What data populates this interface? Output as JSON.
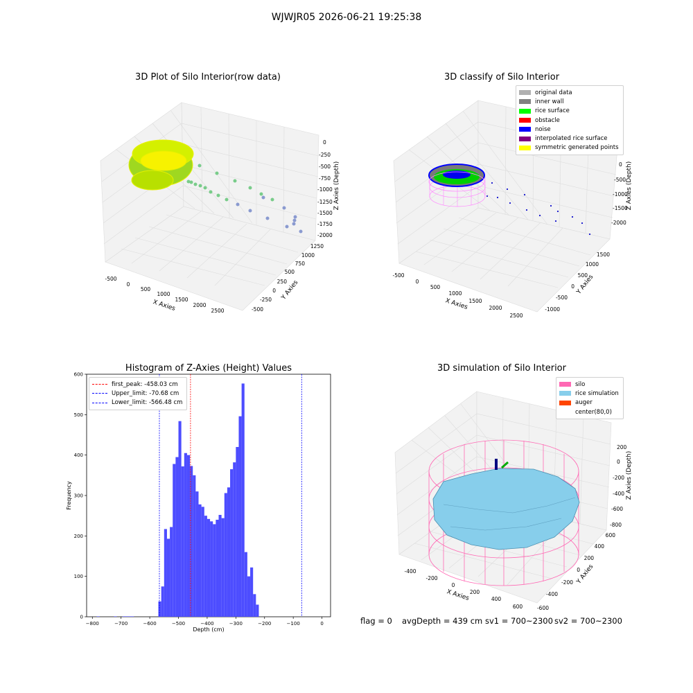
{
  "suptitle": "WJWJR05 2026-06-21 19:25:38",
  "plot1": {
    "title": "3D Plot of Silo Interior(row data)",
    "xlabel": "X Axies",
    "ylabel": "Y Axies",
    "zlabel": "Z Axies (Depth)",
    "xticks": [
      "-500",
      "0",
      "500",
      "1000",
      "1500",
      "2000",
      "2500"
    ],
    "yticks": [
      "-500",
      "-250",
      "0",
      "250",
      "500",
      "750",
      "1000",
      "1250"
    ],
    "zticks": [
      "0",
      "-250",
      "-500",
      "-750",
      "-1000",
      "-1250",
      "-1500",
      "-1750",
      "-2000"
    ]
  },
  "plot2": {
    "title": "3D classify of Silo Interior",
    "xlabel": "X Axies",
    "ylabel": "Y Axies",
    "zlabel": "Z Axies (Depth)",
    "xticks": [
      "-500",
      "0",
      "500",
      "1000",
      "1500",
      "2000",
      "2500"
    ],
    "yticks": [
      "-1000",
      "-500",
      "0",
      "500",
      "1000",
      "1500"
    ],
    "zticks": [
      "0",
      "-500",
      "-1000",
      "-1500",
      "-2000"
    ],
    "legend": [
      {
        "label": "original data",
        "color": "#b0b0b0"
      },
      {
        "label": "inner wall",
        "color": "#808080"
      },
      {
        "label": "rice surface",
        "color": "#00ff00"
      },
      {
        "label": "obstacle",
        "color": "#ff0000"
      },
      {
        "label": "noise",
        "color": "#0000ff"
      },
      {
        "label": "interpolated rice surface",
        "color": "#800080"
      },
      {
        "label": "symmetric generated points",
        "color": "#ffff00"
      }
    ]
  },
  "plot4": {
    "title": "3D simulation of Silo Interior",
    "xlabel": "X Axies",
    "ylabel": "Y Axies",
    "zlabel": "Z Axies (Depth)",
    "xticks": [
      "-400",
      "-200",
      "0",
      "200",
      "400",
      "600"
    ],
    "yticks": [
      "-600",
      "-400",
      "-200",
      "0",
      "200",
      "400",
      "600"
    ],
    "zticks": [
      "200",
      "0",
      "-200",
      "-400",
      "-600",
      "-800"
    ],
    "legend": [
      {
        "label": "silo",
        "color": "#ff69b4"
      },
      {
        "label": "rice simulation",
        "color": "#87ceeb"
      },
      {
        "label": "auger",
        "color": "#ff4500"
      },
      {
        "label": "center(80,0)",
        "color": ""
      }
    ]
  },
  "chart_data": {
    "type": "bar",
    "title": "Histogram of Z-Axies (Height) Values",
    "xlabel": "Depth (cm)",
    "ylabel": "Frequency",
    "xlim": [
      -820,
      30
    ],
    "ylim": [
      0,
      600
    ],
    "xticks": [
      -800,
      -700,
      -600,
      -500,
      -400,
      -300,
      -200,
      -100,
      0
    ],
    "yticks": [
      0,
      100,
      200,
      300,
      400,
      500,
      600
    ],
    "bar_color": "#4d4dff",
    "bins": [
      {
        "x0": -785,
        "x1": -775,
        "value": 1
      },
      {
        "x0": -725,
        "x1": -715,
        "value": 1
      },
      {
        "x0": -695,
        "x1": -655,
        "value": 1
      },
      {
        "x0": -570,
        "x1": -560,
        "value": 38
      },
      {
        "x0": -560,
        "x1": -550,
        "value": 75
      },
      {
        "x0": -550,
        "x1": -540,
        "value": 217
      },
      {
        "x0": -540,
        "x1": -530,
        "value": 193
      },
      {
        "x0": -530,
        "x1": -520,
        "value": 222
      },
      {
        "x0": -520,
        "x1": -510,
        "value": 378
      },
      {
        "x0": -510,
        "x1": -500,
        "value": 395
      },
      {
        "x0": -500,
        "x1": -490,
        "value": 484
      },
      {
        "x0": -490,
        "x1": -480,
        "value": 372
      },
      {
        "x0": -480,
        "x1": -470,
        "value": 405
      },
      {
        "x0": -470,
        "x1": -460,
        "value": 400
      },
      {
        "x0": -460,
        "x1": -450,
        "value": 373
      },
      {
        "x0": -450,
        "x1": -440,
        "value": 350
      },
      {
        "x0": -440,
        "x1": -430,
        "value": 310
      },
      {
        "x0": -430,
        "x1": -420,
        "value": 278
      },
      {
        "x0": -420,
        "x1": -410,
        "value": 272
      },
      {
        "x0": -410,
        "x1": -400,
        "value": 250
      },
      {
        "x0": -400,
        "x1": -390,
        "value": 242
      },
      {
        "x0": -390,
        "x1": -380,
        "value": 236
      },
      {
        "x0": -380,
        "x1": -370,
        "value": 229
      },
      {
        "x0": -370,
        "x1": -360,
        "value": 240
      },
      {
        "x0": -360,
        "x1": -350,
        "value": 252
      },
      {
        "x0": -350,
        "x1": -340,
        "value": 244
      },
      {
        "x0": -340,
        "x1": -330,
        "value": 306
      },
      {
        "x0": -330,
        "x1": -320,
        "value": 320
      },
      {
        "x0": -320,
        "x1": -310,
        "value": 365
      },
      {
        "x0": -310,
        "x1": -300,
        "value": 382
      },
      {
        "x0": -300,
        "x1": -290,
        "value": 420
      },
      {
        "x0": -290,
        "x1": -280,
        "value": 496
      },
      {
        "x0": -280,
        "x1": -270,
        "value": 577
      },
      {
        "x0": -270,
        "x1": -260,
        "value": 160
      },
      {
        "x0": -260,
        "x1": -250,
        "value": 100
      },
      {
        "x0": -250,
        "x1": -240,
        "value": 122
      },
      {
        "x0": -240,
        "x1": -230,
        "value": 56
      },
      {
        "x0": -230,
        "x1": -220,
        "value": 30
      }
    ],
    "vlines": [
      {
        "label": "first_peak: -458.03 cm",
        "value": -458.03,
        "color": "#ff0000"
      },
      {
        "label": "Upper_limit: -70.68 cm",
        "value": -70.68,
        "color": "#0000ff"
      },
      {
        "label": "Lower_limit: -566.48 cm",
        "value": -566.48,
        "color": "#0000ff"
      }
    ]
  },
  "footer": {
    "flag": "flag = 0",
    "avg": "avgDepth = 439 cm",
    "sv1": "sv1 = 700~2300",
    "sv2": "sv2 = 700~2300"
  }
}
